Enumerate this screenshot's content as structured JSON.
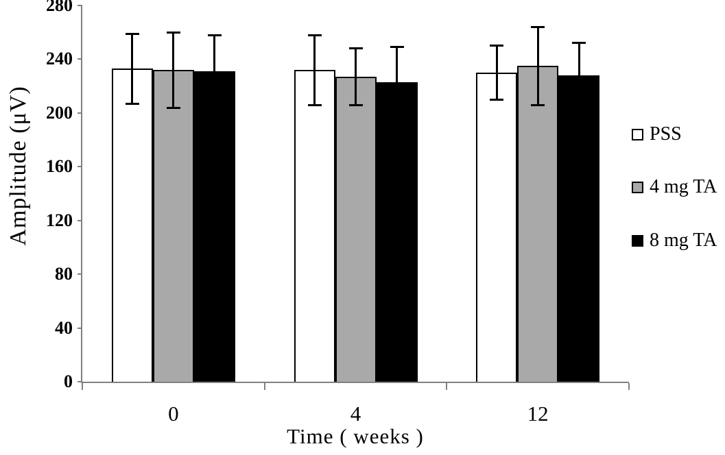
{
  "chart_data": {
    "type": "bar",
    "title": "",
    "xlabel": "Time ( weeks )",
    "ylabel": "Amplitude (μV)",
    "categories": [
      "0",
      "4",
      "12"
    ],
    "y_axis": {
      "min": 0,
      "max": 280,
      "tick_step": 40,
      "tick_labels": [
        "0",
        "40",
        "80",
        "120",
        "160",
        "200",
        "240",
        "280"
      ]
    },
    "series": [
      {
        "name": "PSS",
        "fill": "#ffffff",
        "border": "#000000",
        "values": [
          233,
          232,
          230
        ],
        "errors": [
          26,
          26,
          20
        ]
      },
      {
        "name": "4 mg TA",
        "fill": "#a9a9a9",
        "border": "#000000",
        "values": [
          232,
          227,
          235
        ],
        "errors": [
          28,
          21,
          29
        ]
      },
      {
        "name": "8 mg TA",
        "fill": "#000000",
        "border": "#000000",
        "values": [
          231,
          223,
          228
        ],
        "errors": [
          27,
          26,
          24
        ]
      }
    ],
    "legend": {
      "position": "right",
      "labels": [
        "PSS",
        "4 mg TA",
        "8 mg TA"
      ]
    },
    "grid": false,
    "axis_color": "#808080",
    "error_bar_color": "#000000"
  }
}
